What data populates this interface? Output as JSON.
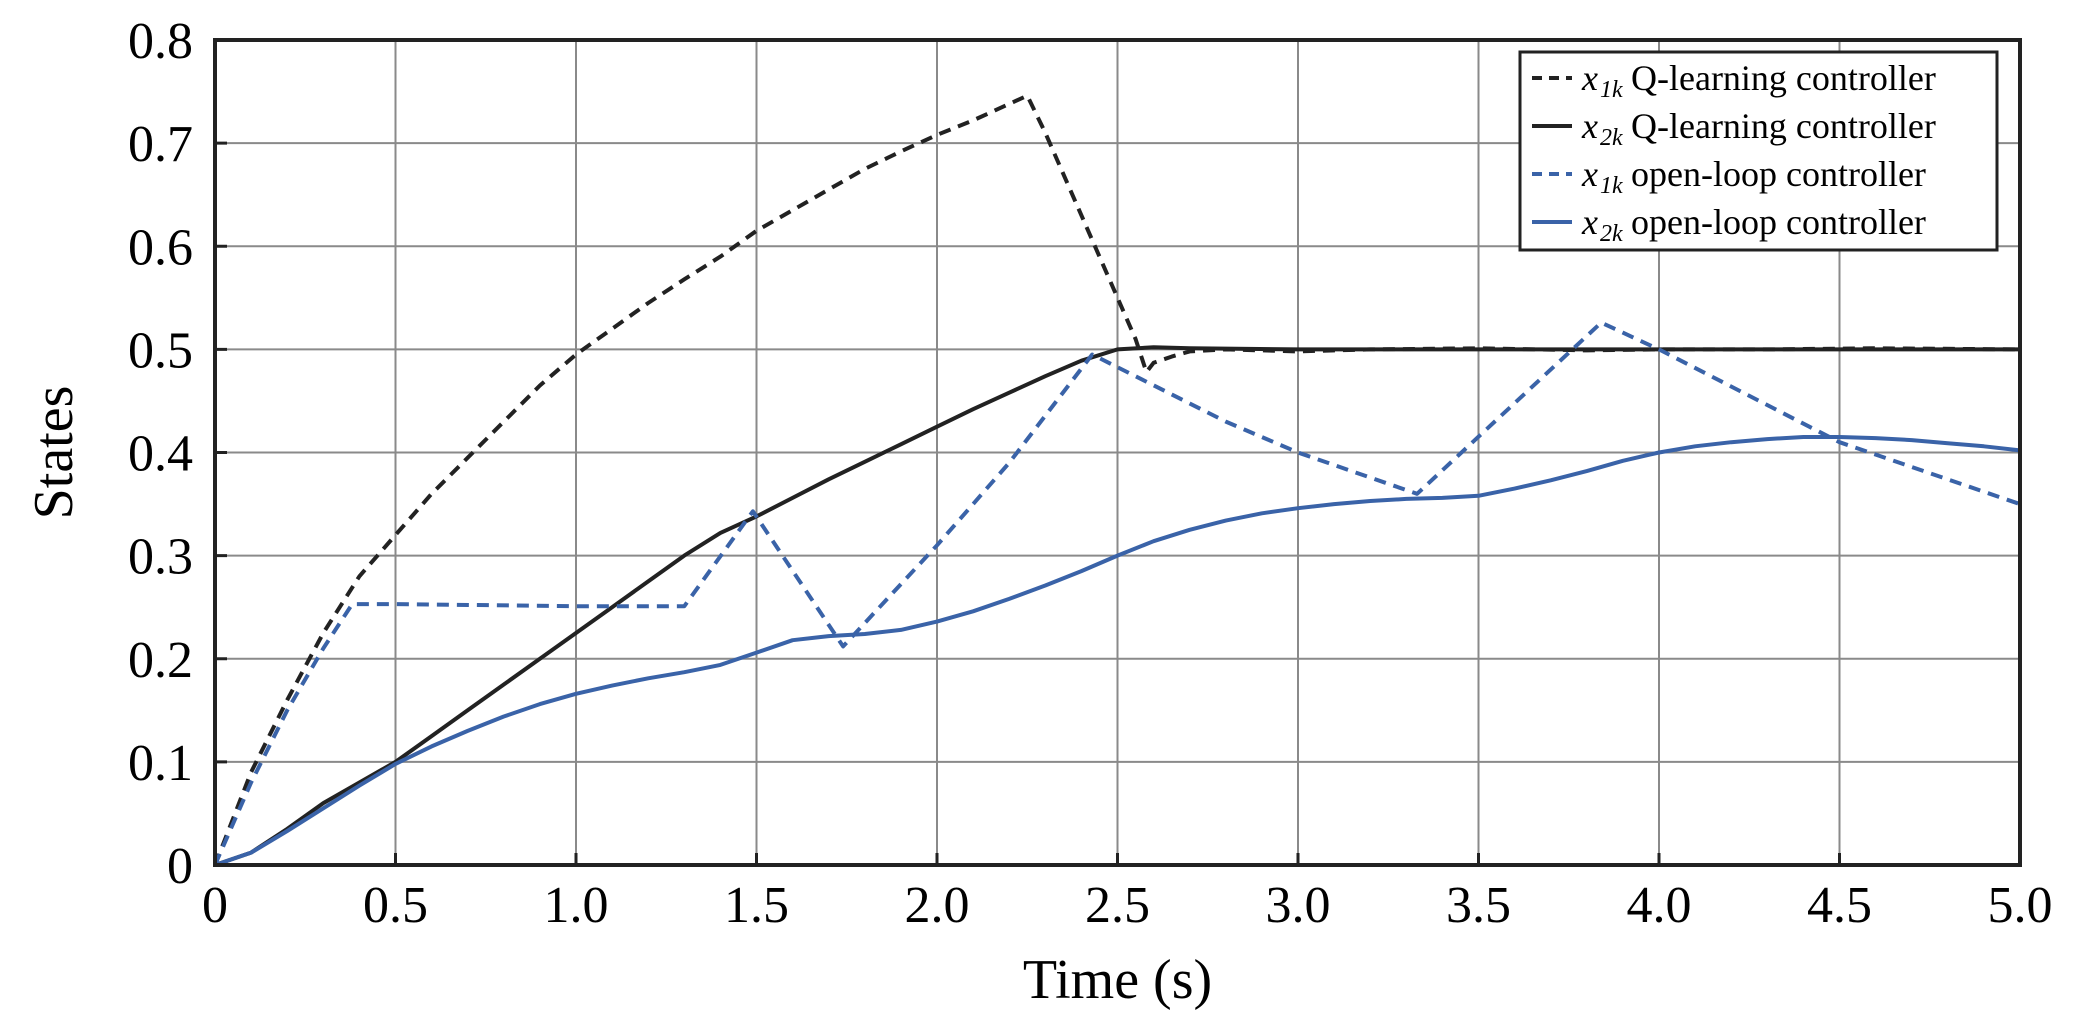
{
  "chart_data": {
    "type": "line",
    "xlabel": "Time (s)",
    "ylabel": "States",
    "xlim": [
      0,
      5
    ],
    "ylim": [
      0,
      0.8
    ],
    "xticks": [
      0,
      0.5,
      1.0,
      1.5,
      2.0,
      2.5,
      3.0,
      3.5,
      4.0,
      4.5,
      5.0
    ],
    "xtick_labels": [
      "0",
      "0.5",
      "1.0",
      "1.5",
      "2.0",
      "2.5",
      "3.0",
      "3.5",
      "4.0",
      "4.5",
      "5.0"
    ],
    "yticks": [
      0,
      0.1,
      0.2,
      0.3,
      0.4,
      0.5,
      0.6,
      0.7,
      0.8
    ],
    "ytick_labels": [
      "0",
      "0.1",
      "0.2",
      "0.3",
      "0.4",
      "0.5",
      "0.6",
      "0.7",
      "0.8"
    ],
    "grid": true,
    "legend_position": "top-right",
    "series": [
      {
        "symbol": "x",
        "subscript": "1k",
        "name": "Q-learning controller",
        "color": "#222222",
        "dash": "dashed",
        "x": [
          0,
          0.1,
          0.2,
          0.3,
          0.4,
          0.5,
          0.6,
          0.7,
          0.8,
          0.9,
          1.0,
          1.1,
          1.2,
          1.3,
          1.4,
          1.5,
          1.6,
          1.7,
          1.8,
          1.9,
          2.0,
          2.1,
          2.2,
          2.25,
          2.3,
          2.4,
          2.5,
          2.55,
          2.58,
          2.6,
          2.65,
          2.7,
          2.8,
          3.0,
          3.2,
          3.5,
          3.8,
          4.0,
          4.3,
          4.6,
          5.0
        ],
        "y": [
          0,
          0.09,
          0.16,
          0.225,
          0.28,
          0.32,
          0.36,
          0.395,
          0.43,
          0.465,
          0.495,
          0.52,
          0.545,
          0.568,
          0.59,
          0.615,
          0.635,
          0.655,
          0.675,
          0.692,
          0.708,
          0.722,
          0.738,
          0.746,
          0.71,
          0.63,
          0.55,
          0.51,
          0.478,
          0.487,
          0.493,
          0.498,
          0.5,
          0.498,
          0.5,
          0.501,
          0.499,
          0.5,
          0.5,
          0.501,
          0.5
        ]
      },
      {
        "symbol": "x",
        "subscript": "2k",
        "name": "Q-learning controller",
        "color": "#222222",
        "dash": "solid",
        "x": [
          0,
          0.1,
          0.2,
          0.3,
          0.4,
          0.5,
          0.6,
          0.7,
          0.8,
          0.9,
          1.0,
          1.1,
          1.2,
          1.3,
          1.4,
          1.5,
          1.6,
          1.7,
          1.8,
          1.9,
          2.0,
          2.1,
          2.2,
          2.3,
          2.4,
          2.5,
          2.6,
          2.7,
          3.0,
          3.5,
          4.0,
          4.5,
          5.0
        ],
        "y": [
          0,
          0.012,
          0.035,
          0.06,
          0.08,
          0.1,
          0.125,
          0.15,
          0.175,
          0.2,
          0.225,
          0.25,
          0.275,
          0.3,
          0.322,
          0.338,
          0.356,
          0.374,
          0.391,
          0.408,
          0.425,
          0.442,
          0.458,
          0.474,
          0.489,
          0.5,
          0.502,
          0.501,
          0.5,
          0.5,
          0.5,
          0.5,
          0.5
        ]
      },
      {
        "symbol": "x",
        "subscript": "1k",
        "name": "open-loop controller",
        "color": "#3a63a8",
        "dash": "dashed",
        "x": [
          0,
          0.1,
          0.2,
          0.3,
          0.38,
          0.5,
          1.0,
          1.3,
          1.49,
          1.74,
          2.0,
          2.2,
          2.43,
          2.8,
          3.0,
          3.33,
          3.84,
          4.0,
          4.5,
          5.0
        ],
        "y": [
          0,
          0.08,
          0.15,
          0.21,
          0.253,
          0.253,
          0.251,
          0.251,
          0.343,
          0.212,
          0.31,
          0.39,
          0.495,
          0.43,
          0.4,
          0.36,
          0.526,
          0.5,
          0.41,
          0.35
        ]
      },
      {
        "symbol": "x",
        "subscript": "2k",
        "name": "open-loop controller",
        "color": "#3a63a8",
        "dash": "solid",
        "x": [
          0,
          0.1,
          0.2,
          0.3,
          0.4,
          0.5,
          0.6,
          0.7,
          0.8,
          0.9,
          1.0,
          1.1,
          1.2,
          1.3,
          1.4,
          1.5,
          1.6,
          1.7,
          1.8,
          1.9,
          2.0,
          2.1,
          2.2,
          2.3,
          2.4,
          2.5,
          2.6,
          2.7,
          2.8,
          2.9,
          3.0,
          3.1,
          3.2,
          3.3,
          3.4,
          3.5,
          3.6,
          3.7,
          3.8,
          3.9,
          4.0,
          4.1,
          4.2,
          4.3,
          4.4,
          4.5,
          4.6,
          4.7,
          4.8,
          4.9,
          5.0
        ],
        "y": [
          0,
          0.012,
          0.033,
          0.055,
          0.077,
          0.098,
          0.115,
          0.13,
          0.144,
          0.156,
          0.166,
          0.174,
          0.181,
          0.187,
          0.194,
          0.206,
          0.218,
          0.222,
          0.224,
          0.228,
          0.236,
          0.246,
          0.258,
          0.271,
          0.285,
          0.3,
          0.314,
          0.325,
          0.334,
          0.341,
          0.346,
          0.35,
          0.353,
          0.355,
          0.356,
          0.358,
          0.365,
          0.373,
          0.382,
          0.392,
          0.4,
          0.406,
          0.41,
          0.413,
          0.415,
          0.415,
          0.414,
          0.412,
          0.409,
          0.406,
          0.402
        ]
      }
    ]
  }
}
